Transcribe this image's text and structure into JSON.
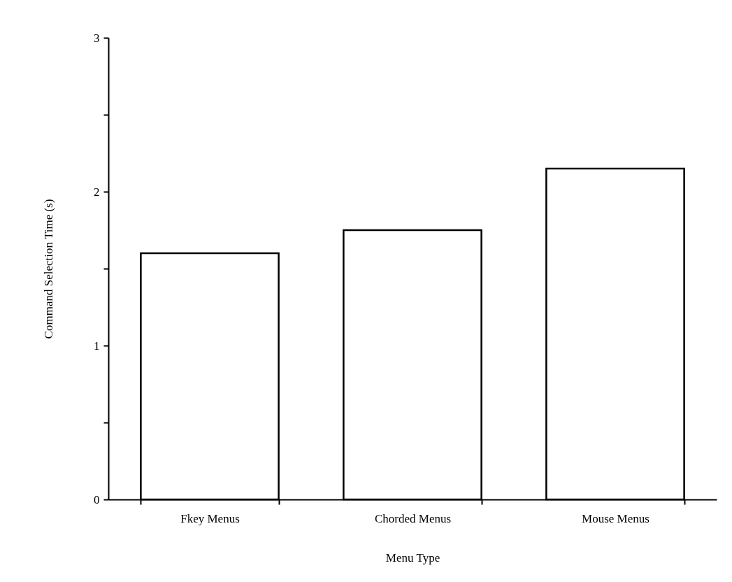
{
  "chart_data": {
    "type": "bar",
    "xlabel": "Menu Type",
    "ylabel": "Command Selection Time (s)",
    "categories": [
      "Fkey Menus",
      "Chorded Menus",
      "Mouse Menus"
    ],
    "values": [
      1.6,
      1.75,
      2.15
    ],
    "color": "#ffffff",
    "ylim": [
      0,
      3
    ],
    "yticks": [
      0,
      {
        "value": 0.5,
        "label": null
      },
      1,
      {
        "value": 1.5,
        "label": null
      },
      2,
      {
        "value": 2.5,
        "label": null
      },
      3
    ],
    "grid": false
  }
}
